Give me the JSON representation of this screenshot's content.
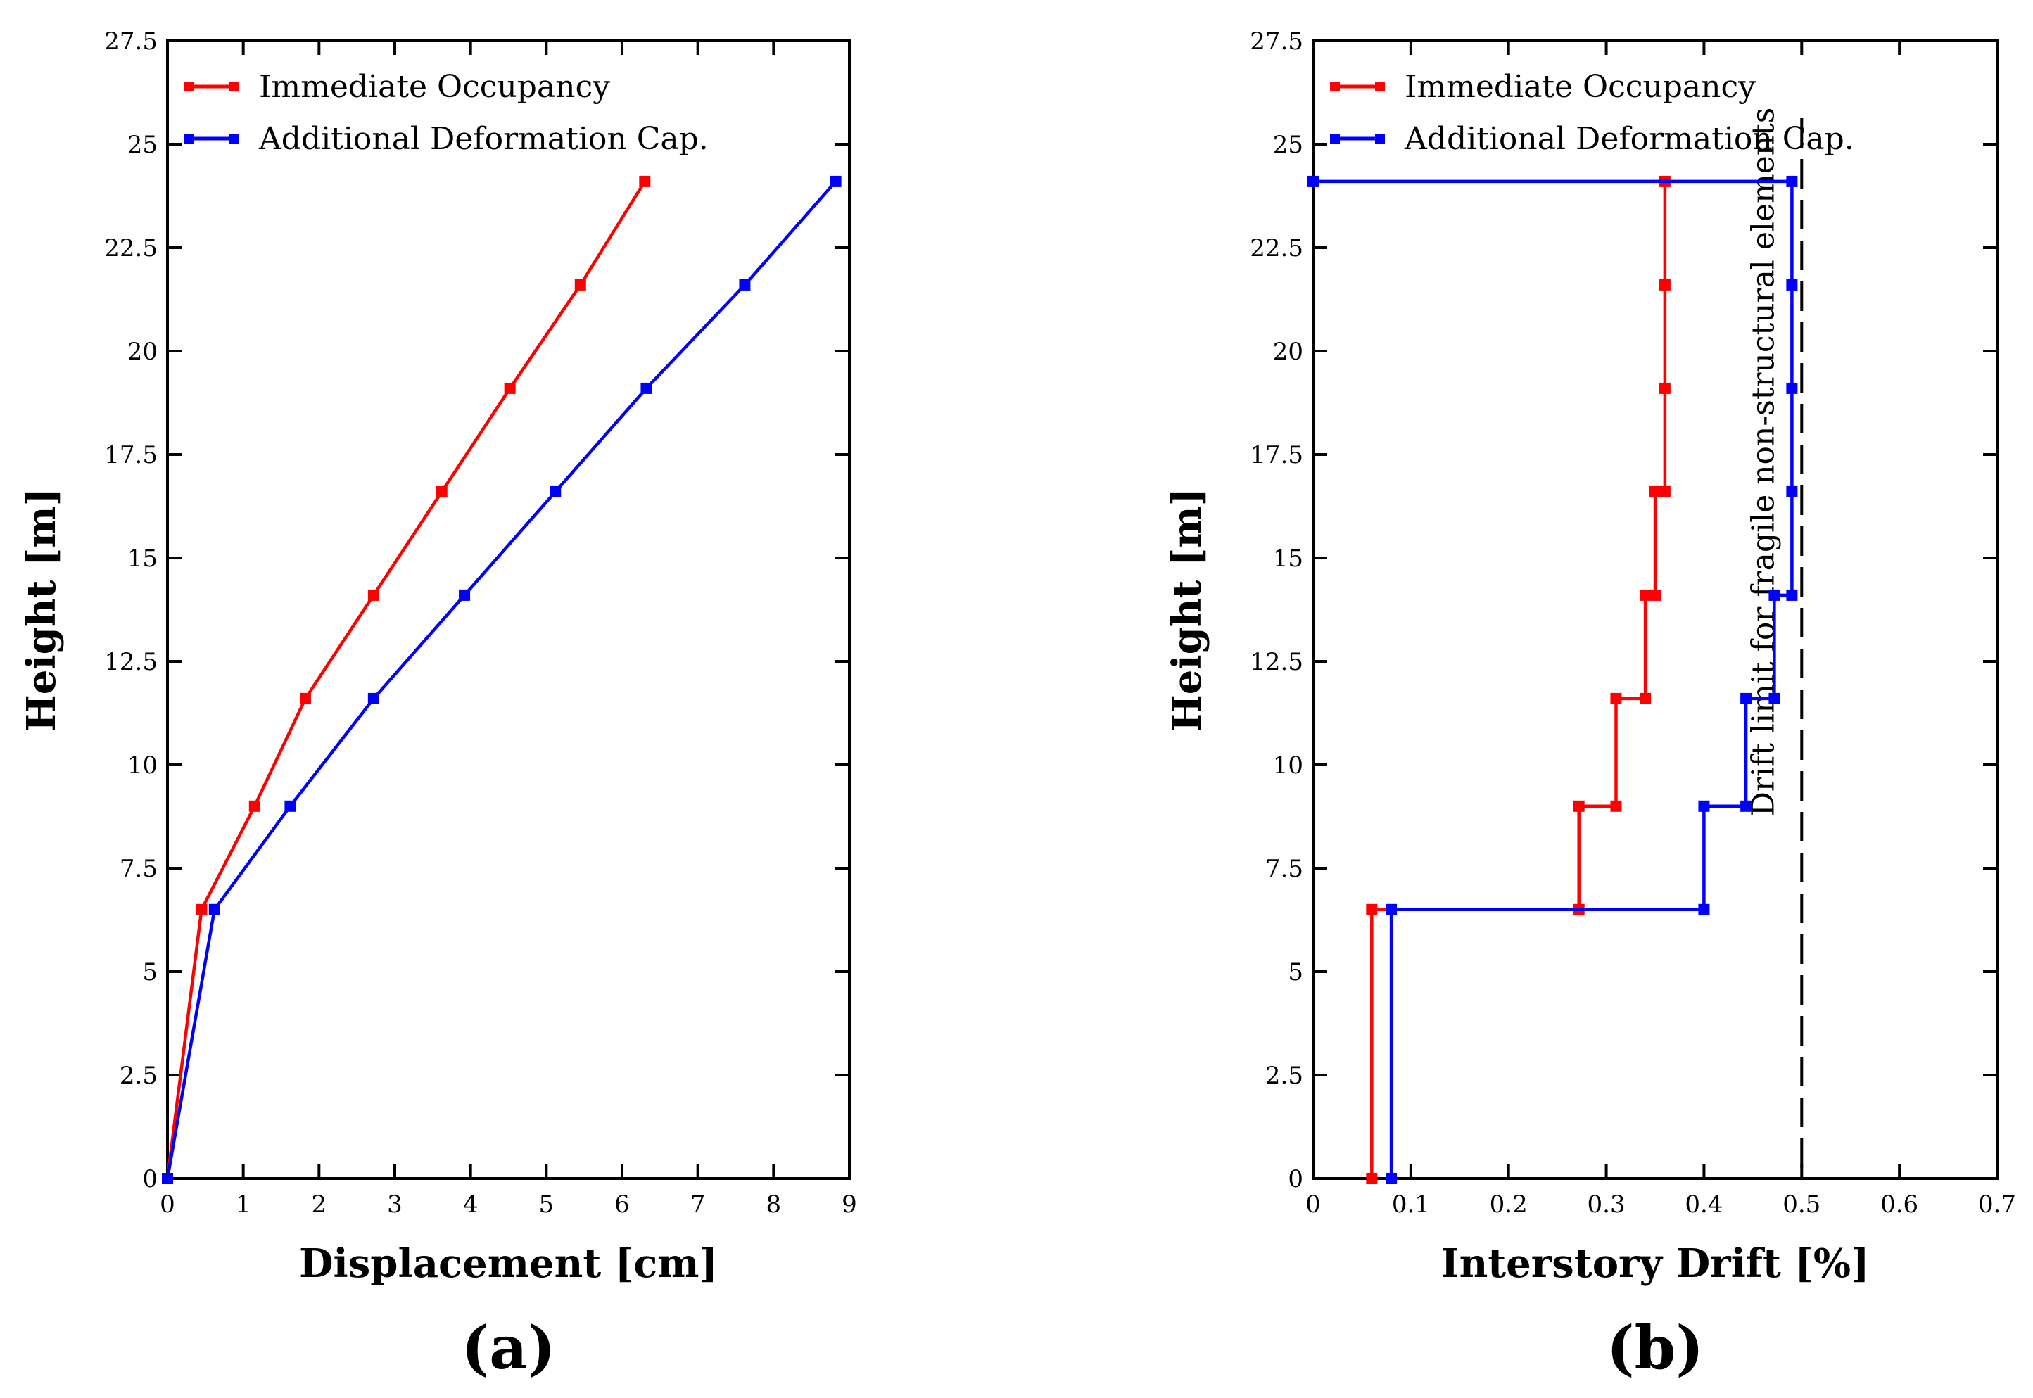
{
  "chart_data": [
    {
      "panel_label": "(a)",
      "type": "line",
      "xlabel": "Displacement [cm]",
      "ylabel": "Height [m]",
      "xlim": [
        0,
        9
      ],
      "ylim": [
        0,
        27.5
      ],
      "xticks": [
        0,
        1,
        2,
        3,
        4,
        5,
        6,
        7,
        8,
        9
      ],
      "yticks": [
        0,
        2.5,
        5,
        7.5,
        10,
        12.5,
        15,
        17.5,
        20,
        22.5,
        25,
        27.5
      ],
      "xtick_labels": [
        "0",
        "1",
        "2",
        "3",
        "4",
        "5",
        "6",
        "7",
        "8",
        "9"
      ],
      "ytick_labels": [
        "0",
        "2.5",
        "5",
        "7.5",
        "10",
        "12.5",
        "15",
        "17.5",
        "20",
        "22.5",
        "25",
        "27.5"
      ],
      "legend_position": "top-left",
      "series": [
        {
          "name": "Immediate Occupancy",
          "color": "#ff0000",
          "points": [
            [
              0,
              0
            ],
            [
              0.45,
              6.5
            ],
            [
              1.15,
              9.0
            ],
            [
              1.82,
              11.6
            ],
            [
              2.72,
              14.1
            ],
            [
              3.62,
              16.6
            ],
            [
              4.52,
              19.1
            ],
            [
              5.45,
              21.6
            ],
            [
              6.3,
              24.1
            ]
          ]
        },
        {
          "name": "Additional Deformation Cap.",
          "color": "#0000ff",
          "points": [
            [
              0,
              0
            ],
            [
              0.62,
              6.5
            ],
            [
              1.62,
              9.0
            ],
            [
              2.72,
              11.6
            ],
            [
              3.92,
              14.1
            ],
            [
              5.12,
              16.6
            ],
            [
              6.32,
              19.1
            ],
            [
              7.62,
              21.6
            ],
            [
              8.82,
              24.1
            ]
          ]
        }
      ]
    },
    {
      "panel_label": "(b)",
      "type": "line",
      "xlabel": "Interstory Drift [%]",
      "ylabel": "Height [m]",
      "xlim": [
        0,
        0.7
      ],
      "ylim": [
        0,
        27.5
      ],
      "xticks": [
        0,
        0.1,
        0.2,
        0.3,
        0.4,
        0.5,
        0.6,
        0.7
      ],
      "yticks": [
        0,
        2.5,
        5,
        7.5,
        10,
        12.5,
        15,
        17.5,
        20,
        22.5,
        25,
        27.5
      ],
      "xtick_labels": [
        "0",
        "0.1",
        "0.2",
        "0.3",
        "0.4",
        "0.5",
        "0.6",
        "0.7"
      ],
      "ytick_labels": [
        "0",
        "2.5",
        "5",
        "7.5",
        "10",
        "12.5",
        "15",
        "17.5",
        "20",
        "22.5",
        "25",
        "27.5"
      ],
      "legend_position": "top-left",
      "series": [
        {
          "name": "Immediate Occupancy",
          "color": "#ff0000",
          "points": [
            [
              0.06,
              0
            ],
            [
              0.06,
              6.5
            ],
            [
              0.272,
              6.5
            ],
            [
              0.272,
              9.0
            ],
            [
              0.31,
              9.0
            ],
            [
              0.31,
              11.6
            ],
            [
              0.34,
              11.6
            ],
            [
              0.34,
              14.1
            ],
            [
              0.35,
              14.1
            ],
            [
              0.35,
              16.6
            ],
            [
              0.36,
              16.6
            ],
            [
              0.36,
              19.1
            ],
            [
              0.36,
              21.6
            ],
            [
              0.36,
              24.1
            ]
          ]
        },
        {
          "name": "Additional Deformation Cap.",
          "color": "#0000ff",
          "points": [
            [
              0.08,
              0
            ],
            [
              0.08,
              6.5
            ],
            [
              0.4,
              6.5
            ],
            [
              0.4,
              9.0
            ],
            [
              0.443,
              9.0
            ],
            [
              0.443,
              11.6
            ],
            [
              0.472,
              11.6
            ],
            [
              0.472,
              14.1
            ],
            [
              0.49,
              14.1
            ],
            [
              0.49,
              16.6
            ],
            [
              0.49,
              19.1
            ],
            [
              0.49,
              21.6
            ],
            [
              0.49,
              24.1
            ],
            [
              0.0,
              24.1
            ]
          ]
        }
      ],
      "reference_line": {
        "x": 0.5,
        "style": "dashed",
        "color": "#000000",
        "label": "Drift limit for fragile non-structural elements"
      }
    }
  ]
}
